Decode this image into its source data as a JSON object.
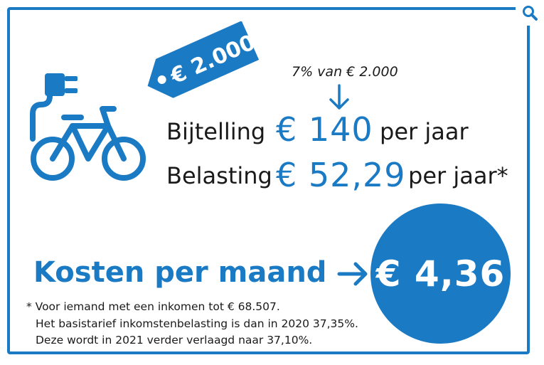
{
  "price_tag": {
    "text": "€ 2.000"
  },
  "calculation_note": "7% van € 2.000",
  "rows": [
    {
      "label": "Bijtelling",
      "value": "€ 140",
      "suffix": "per jaar"
    },
    {
      "label": "Belasting",
      "value": "€ 52,29",
      "suffix": "per jaar*"
    }
  ],
  "monthly": {
    "label": "Kosten per maand",
    "value": "€ 4,36"
  },
  "footnote": [
    "* Voor iemand met een inkomen tot € 68.507.",
    "Het basistarief inkomstenbelasting is dan in 2020 37,35%.",
    "Deze wordt in 2021 verder verlaagd naar 37,10%."
  ],
  "icons": {
    "bike": "electric-bike-icon",
    "tag": "price-tag-icon",
    "zoom": "magnifier-icon",
    "down": "arrow-down-icon",
    "right": "arrow-right-icon"
  },
  "colors": {
    "brand_blue": "#1a7ac4",
    "text": "#1a1a1a",
    "background": "#ffffff"
  }
}
